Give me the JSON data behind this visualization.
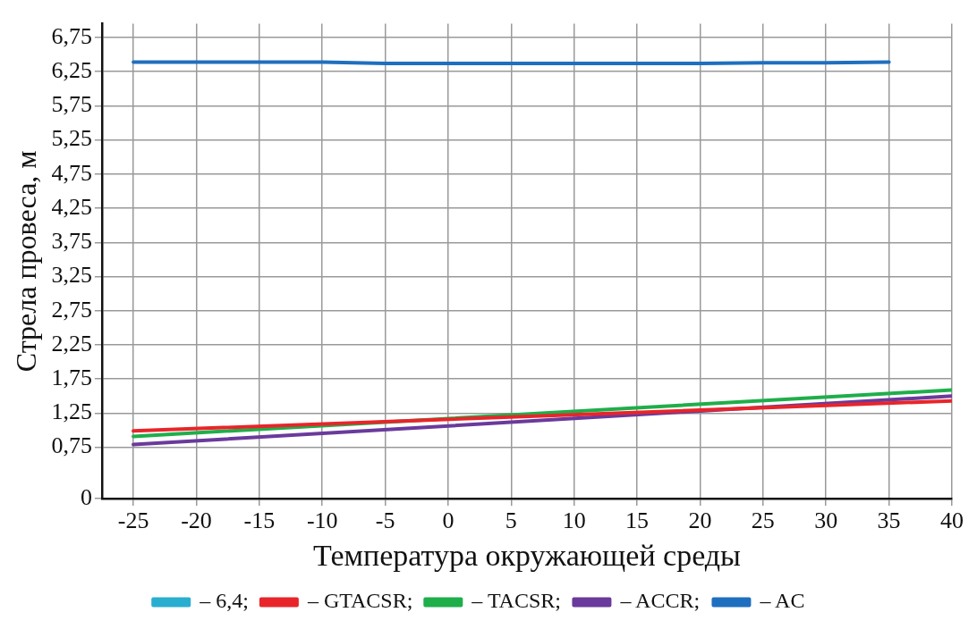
{
  "chart_data": {
    "type": "line",
    "xlabel": "Температура окружающей среды",
    "ylabel": "Стрела провеса, м",
    "xlim": [
      -27.5,
      40
    ],
    "xticks": [
      -25,
      -20,
      -15,
      -10,
      -5,
      0,
      5,
      10,
      15,
      20,
      25,
      30,
      35,
      40
    ],
    "ylim": [
      0,
      6.95
    ],
    "yticks": [
      {
        "value": 0,
        "label": "0"
      },
      {
        "value": 0.75,
        "label": "0,75"
      },
      {
        "value": 1.25,
        "label": "1,25"
      },
      {
        "value": 1.75,
        "label": "1,75"
      },
      {
        "value": 2.25,
        "label": "2,25"
      },
      {
        "value": 2.75,
        "label": "2,75"
      },
      {
        "value": 3.25,
        "label": "3,25"
      },
      {
        "value": 3.75,
        "label": "3,75"
      },
      {
        "value": 4.25,
        "label": "4,25"
      },
      {
        "value": 4.75,
        "label": "4,75"
      },
      {
        "value": 5.25,
        "label": "5,25"
      },
      {
        "value": 5.75,
        "label": "5,75"
      },
      {
        "value": 6.25,
        "label": "6,25"
      },
      {
        "value": 6.75,
        "label": "6,75"
      }
    ],
    "grid": true,
    "legend": "bottom",
    "marker": "none",
    "line_style": "solid",
    "series": [
      {
        "name": "– 6,4;",
        "color": "#2aaed0"
      },
      {
        "name": "– GTACSR;",
        "color": "#e8252a",
        "x": [
          -25,
          40
        ],
        "values": [
          0.99,
          1.43
        ]
      },
      {
        "name": "– TACSR;",
        "color": "#1fae4a",
        "x": [
          -25,
          40
        ],
        "values": [
          0.91,
          1.59
        ]
      },
      {
        "name": "– ACCR;",
        "color": "#6a3a9c",
        "x": [
          -25,
          40
        ],
        "values": [
          0.79,
          1.5
        ]
      },
      {
        "name": "– AC",
        "color": "#1f6fbf",
        "x": [
          -25,
          -20,
          -15,
          -10,
          -5,
          0,
          5,
          10,
          15,
          20,
          25,
          30,
          35
        ],
        "values": [
          6.39,
          6.39,
          6.39,
          6.39,
          6.37,
          6.37,
          6.37,
          6.37,
          6.37,
          6.37,
          6.38,
          6.38,
          6.39
        ]
      }
    ]
  }
}
